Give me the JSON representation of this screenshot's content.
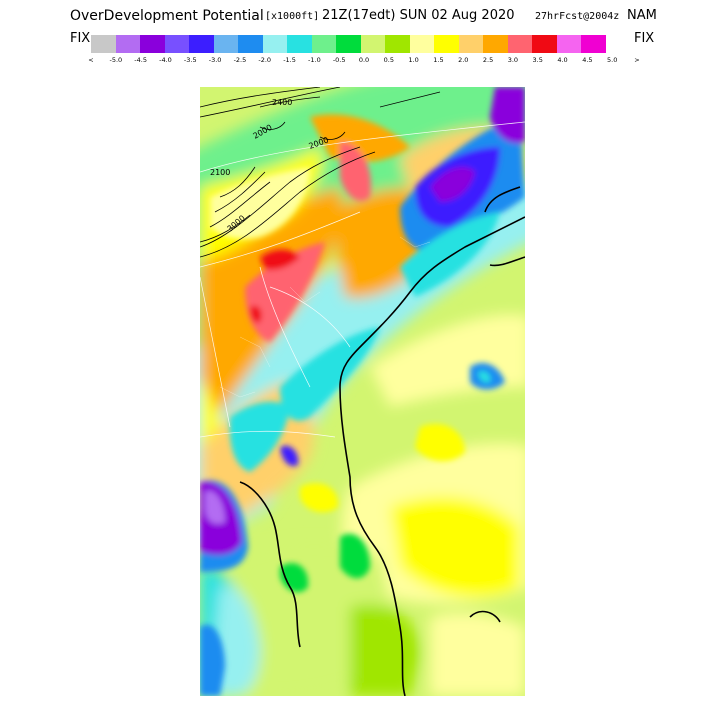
{
  "header": {
    "title": "OverDevelopment Potential",
    "units": "[x1000ft]",
    "valid_time": "21Z(17edt) SUN 02 Aug 2020",
    "forecast_info": "27hrFcst@2004z",
    "model": "NAM"
  },
  "fix_left": "FIX",
  "fix_right": "FIX",
  "legend": {
    "colors": [
      "#c8c8c8",
      "#b36cf2",
      "#8a00dc",
      "#7850ff",
      "#3c1eff",
      "#6ab4f0",
      "#1e8cf0",
      "#96f0f0",
      "#28e1e1",
      "#6ef08c",
      "#00dc3c",
      "#d2f570",
      "#a0e600",
      "#ffff9e",
      "#ffff00",
      "#ffd06a",
      "#ffa800",
      "#ff6470",
      "#f00a14",
      "#f564f0",
      "#f000d2"
    ],
    "tick_labels": [
      "<",
      "-5.0",
      "-4.5",
      "-4.0",
      "-3.5",
      "-3.0",
      "-2.5",
      "-2.0",
      "-1.5",
      "-1.0",
      "-0.5",
      "0.0",
      "0.5",
      "1.0",
      "1.5",
      "2.0",
      "2.5",
      "3.0",
      "3.5",
      "4.0",
      "4.5",
      "5.0",
      ">"
    ]
  },
  "map_contour_labels": [
    "2400",
    "2000",
    "2000",
    "3000",
    "2100"
  ]
}
